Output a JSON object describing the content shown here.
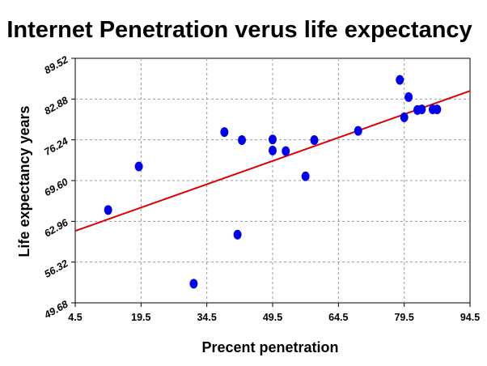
{
  "chart_data": {
    "type": "scatter",
    "title": "Internet Penetration verus life expectancy",
    "xlabel": "Precent penetration",
    "ylabel": "Life expectancy years",
    "xlim": [
      4.5,
      94.5
    ],
    "ylim": [
      49.68,
      89.52
    ],
    "x_ticks": [
      "4.5",
      "19.5",
      "34.5",
      "49.5",
      "64.5",
      "79.5",
      "94.5"
    ],
    "y_ticks": [
      "49.68",
      "56.32",
      "62.96",
      "69.60",
      "76.24",
      "82.88",
      "89.52"
    ],
    "grid": true,
    "legend": "none",
    "colors": {
      "points": "#0000ee",
      "trend_line": "#dd0000",
      "grid": "#999999",
      "axis": "#000000"
    },
    "points": [
      {
        "x": 12.0,
        "y": 64.8
      },
      {
        "x": 19.0,
        "y": 71.9
      },
      {
        "x": 31.5,
        "y": 52.8
      },
      {
        "x": 38.5,
        "y": 77.5
      },
      {
        "x": 41.5,
        "y": 60.8
      },
      {
        "x": 42.5,
        "y": 76.2
      },
      {
        "x": 49.5,
        "y": 76.3
      },
      {
        "x": 49.5,
        "y": 74.5
      },
      {
        "x": 52.5,
        "y": 74.4
      },
      {
        "x": 57.0,
        "y": 70.3
      },
      {
        "x": 59.0,
        "y": 76.2
      },
      {
        "x": 69.0,
        "y": 77.7
      },
      {
        "x": 78.5,
        "y": 86.0
      },
      {
        "x": 79.5,
        "y": 79.9
      },
      {
        "x": 80.5,
        "y": 83.2
      },
      {
        "x": 82.5,
        "y": 81.1
      },
      {
        "x": 83.5,
        "y": 81.2
      },
      {
        "x": 86.0,
        "y": 81.2
      },
      {
        "x": 87.0,
        "y": 81.2
      }
    ],
    "trend_line": {
      "x": [
        4.5,
        94.5
      ],
      "y": [
        61.4,
        84.2
      ]
    }
  }
}
